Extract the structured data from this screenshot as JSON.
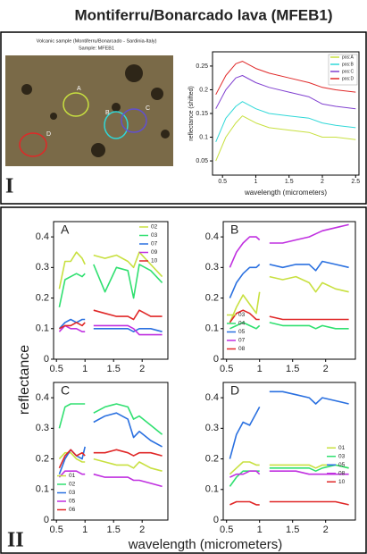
{
  "title": "Montiferru/Bonarcado lava (MFEB1)",
  "photo": {
    "caption": [
      "Volcanic sample (Montiferru/Bonarcado - Sardinia-Italy)",
      "Sample: MFEB1"
    ],
    "labels": [
      "A",
      "B",
      "C",
      "D"
    ]
  },
  "panel_labels": [
    "I",
    "II"
  ],
  "shared_y_label": "reflectance",
  "shared_x_label": "wavelength (micrometers)",
  "chart_data": [
    {
      "type": "line",
      "y_label": "reflectance (shifted)",
      "x_label": "wavelength (micrometers)",
      "legend": "upper right",
      "x": [
        0.4,
        0.55,
        0.7,
        0.8,
        1.0,
        1.2,
        1.5,
        1.8,
        2.0,
        2.2,
        2.5
      ],
      "xlim": [
        0.35,
        2.55
      ],
      "xticks": [
        0.5,
        1,
        1.5,
        2,
        2.5
      ],
      "ylim": [
        0.02,
        0.28
      ],
      "yticks": [
        0.05,
        0.1,
        0.15,
        0.2,
        0.25
      ],
      "series": [
        {
          "name": "pos:A",
          "color": "#c8e040",
          "values": [
            0.05,
            0.1,
            0.13,
            0.145,
            0.13,
            0.12,
            0.115,
            0.11,
            0.1,
            0.1,
            0.095
          ]
        },
        {
          "name": "pos:B",
          "color": "#30d8d8",
          "values": [
            0.09,
            0.14,
            0.165,
            0.175,
            0.16,
            0.15,
            0.145,
            0.14,
            0.13,
            0.125,
            0.12
          ]
        },
        {
          "name": "pos:C",
          "color": "#8040d0",
          "values": [
            0.16,
            0.2,
            0.225,
            0.23,
            0.215,
            0.205,
            0.195,
            0.185,
            0.17,
            0.165,
            0.16
          ]
        },
        {
          "name": "pos:D",
          "color": "#e02828",
          "values": [
            0.19,
            0.23,
            0.255,
            0.26,
            0.245,
            0.235,
            0.225,
            0.215,
            0.205,
            0.2,
            0.195
          ]
        }
      ]
    },
    {
      "type": "line",
      "label": "A",
      "legend": "upper right",
      "x": [
        0.55,
        0.65,
        0.75,
        0.85,
        0.95,
        1.0,
        1.05,
        1.15,
        1.35,
        1.55,
        1.75,
        1.85,
        1.95,
        2.15,
        2.35
      ],
      "xlim": [
        0.45,
        2.45
      ],
      "xticks": [
        0.5,
        1,
        1.5,
        2
      ],
      "ylim": [
        0,
        0.45
      ],
      "yticks": [
        0,
        0.1,
        0.2,
        0.3,
        0.4
      ],
      "series": [
        {
          "name": "02",
          "color": "#c8e040",
          "values": [
            0.23,
            0.32,
            0.32,
            0.35,
            0.33,
            0.31,
            null,
            0.34,
            0.33,
            0.34,
            0.32,
            0.3,
            0.35,
            0.31,
            0.27
          ]
        },
        {
          "name": "03",
          "color": "#30e070",
          "values": [
            0.17,
            0.26,
            0.27,
            0.28,
            0.27,
            0.28,
            null,
            0.31,
            0.22,
            0.3,
            0.29,
            0.2,
            0.31,
            0.29,
            0.25
          ]
        },
        {
          "name": "07",
          "color": "#2a70e0",
          "values": [
            0.1,
            0.12,
            0.13,
            0.12,
            0.13,
            0.13,
            null,
            0.1,
            0.1,
            0.1,
            0.1,
            0.09,
            0.1,
            0.1,
            0.09
          ]
        },
        {
          "name": "09",
          "color": "#c030e0",
          "values": [
            0.09,
            0.11,
            0.1,
            0.1,
            0.09,
            0.09,
            null,
            0.11,
            0.11,
            0.11,
            0.11,
            0.1,
            0.08,
            0.08,
            0.08
          ]
        },
        {
          "name": "10",
          "color": "#e02828",
          "values": [
            0.1,
            0.11,
            0.11,
            0.12,
            0.11,
            0.12,
            null,
            0.16,
            0.15,
            0.14,
            0.14,
            0.13,
            0.16,
            0.14,
            0.14
          ]
        }
      ]
    },
    {
      "type": "line",
      "label": "B",
      "legend": "lower left",
      "x": [
        0.55,
        0.65,
        0.75,
        0.85,
        0.95,
        1.0,
        1.05,
        1.15,
        1.35,
        1.55,
        1.75,
        1.85,
        1.95,
        2.15,
        2.35
      ],
      "xlim": [
        0.45,
        2.45
      ],
      "xticks": [
        0.5,
        1,
        1.5,
        2
      ],
      "ylim": [
        0,
        0.45
      ],
      "yticks": [
        0,
        0.1,
        0.2,
        0.3,
        0.4
      ],
      "series": [
        {
          "name": "03",
          "color": "#c8e040",
          "values": [
            0.12,
            0.17,
            0.21,
            0.18,
            0.15,
            0.22,
            null,
            0.27,
            0.26,
            0.27,
            0.25,
            0.22,
            0.25,
            0.23,
            0.22
          ]
        },
        {
          "name": "04",
          "color": "#30e070",
          "values": [
            0.1,
            0.11,
            0.12,
            0.11,
            0.1,
            0.11,
            null,
            0.12,
            0.11,
            0.11,
            0.11,
            0.1,
            0.11,
            0.1,
            0.1
          ]
        },
        {
          "name": "05",
          "color": "#2a70e0",
          "values": [
            0.2,
            0.25,
            0.28,
            0.3,
            0.3,
            0.31,
            null,
            0.31,
            0.3,
            0.31,
            0.31,
            0.29,
            0.32,
            0.31,
            0.3
          ]
        },
        {
          "name": "07",
          "color": "#c030e0",
          "values": [
            0.3,
            0.35,
            0.38,
            0.4,
            0.4,
            0.39,
            null,
            0.38,
            0.38,
            0.39,
            0.4,
            0.41,
            0.42,
            0.43,
            0.44
          ]
        },
        {
          "name": "08",
          "color": "#e02828",
          "values": [
            0.12,
            0.15,
            0.16,
            0.15,
            0.13,
            0.13,
            null,
            0.14,
            0.13,
            0.13,
            0.13,
            0.13,
            0.13,
            0.13,
            0.13
          ]
        }
      ]
    },
    {
      "type": "line",
      "label": "C",
      "legend": "lower left",
      "x": [
        0.55,
        0.65,
        0.75,
        0.85,
        0.95,
        1.0,
        1.05,
        1.15,
        1.35,
        1.55,
        1.75,
        1.85,
        1.95,
        2.15,
        2.35
      ],
      "xlim": [
        0.45,
        2.45
      ],
      "xticks": [
        0.5,
        1,
        1.5,
        2
      ],
      "ylim": [
        0,
        0.45
      ],
      "yticks": [
        0,
        0.1,
        0.2,
        0.3,
        0.4
      ],
      "series": [
        {
          "name": "01",
          "color": "#c8e040",
          "values": [
            0.2,
            0.22,
            0.22,
            0.2,
            0.19,
            0.19,
            null,
            0.2,
            0.19,
            0.18,
            0.18,
            0.17,
            0.19,
            0.17,
            0.16
          ]
        },
        {
          "name": "02",
          "color": "#30e070",
          "values": [
            0.3,
            0.37,
            0.38,
            0.38,
            0.38,
            0.38,
            null,
            0.35,
            0.37,
            0.38,
            0.37,
            0.33,
            0.34,
            0.31,
            0.28
          ]
        },
        {
          "name": "03",
          "color": "#2a70e0",
          "values": [
            0.15,
            0.2,
            0.23,
            0.21,
            0.2,
            0.24,
            null,
            0.32,
            0.34,
            0.35,
            0.33,
            0.27,
            0.29,
            0.26,
            0.24
          ]
        },
        {
          "name": "05",
          "color": "#c030e0",
          "values": [
            0.14,
            0.16,
            0.16,
            0.16,
            0.15,
            0.15,
            null,
            0.15,
            0.14,
            0.14,
            0.14,
            0.13,
            0.13,
            0.12,
            0.11
          ]
        },
        {
          "name": "06",
          "color": "#e02828",
          "values": [
            0.17,
            0.21,
            0.23,
            0.21,
            0.22,
            0.21,
            null,
            0.22,
            0.22,
            0.23,
            0.22,
            0.21,
            0.22,
            0.22,
            0.21
          ]
        }
      ]
    },
    {
      "type": "line",
      "label": "D",
      "legend": "center right",
      "x": [
        0.55,
        0.65,
        0.75,
        0.85,
        0.95,
        1.0,
        1.05,
        1.15,
        1.35,
        1.55,
        1.75,
        1.85,
        1.95,
        2.15,
        2.35
      ],
      "xlim": [
        0.45,
        2.45
      ],
      "xticks": [
        0.5,
        1,
        1.5,
        2
      ],
      "ylim": [
        0,
        0.45
      ],
      "yticks": [
        0,
        0.1,
        0.2,
        0.3,
        0.4
      ],
      "series": [
        {
          "name": "01",
          "color": "#c8e040",
          "values": [
            0.15,
            0.17,
            0.19,
            0.19,
            0.18,
            0.18,
            null,
            0.18,
            0.18,
            0.18,
            0.18,
            0.17,
            0.18,
            0.18,
            0.17
          ]
        },
        {
          "name": "03",
          "color": "#30e070",
          "values": [
            0.11,
            0.14,
            0.16,
            0.16,
            0.16,
            0.16,
            null,
            0.17,
            0.17,
            0.17,
            0.17,
            0.16,
            0.17,
            0.18,
            0.17
          ]
        },
        {
          "name": "05",
          "color": "#2a70e0",
          "values": [
            0.2,
            0.28,
            0.32,
            0.31,
            0.35,
            0.37,
            null,
            0.42,
            0.42,
            0.41,
            0.4,
            0.38,
            0.4,
            0.39,
            0.38
          ]
        },
        {
          "name": "08",
          "color": "#c030e0",
          "values": [
            0.14,
            0.15,
            0.15,
            0.16,
            0.16,
            0.15,
            null,
            0.16,
            0.16,
            0.16,
            0.15,
            0.15,
            0.15,
            0.15,
            0.15
          ]
        },
        {
          "name": "10",
          "color": "#e02828",
          "values": [
            0.05,
            0.06,
            0.06,
            0.06,
            0.05,
            0.05,
            null,
            0.06,
            0.06,
            0.06,
            0.06,
            0.06,
            0.06,
            0.06,
            0.05
          ]
        }
      ]
    }
  ]
}
